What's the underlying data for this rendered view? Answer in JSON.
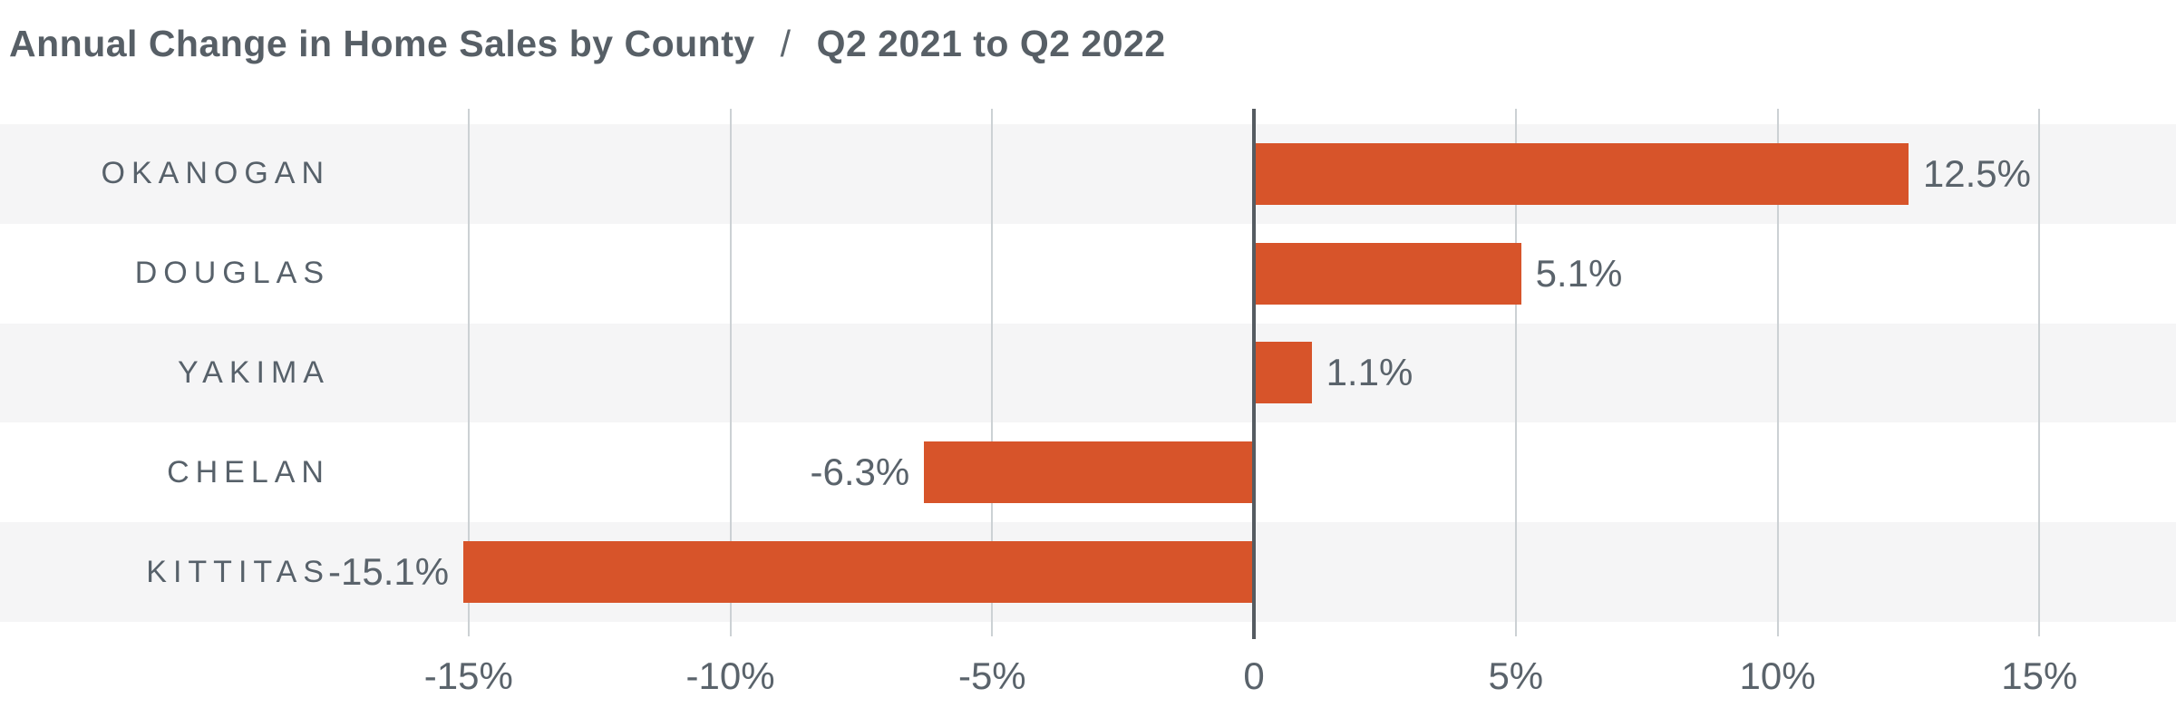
{
  "header": {
    "title": "Annual Change in Home Sales by County",
    "separator": "/",
    "subtitle": "Q2 2021 to Q2 2022"
  },
  "chart_data": {
    "type": "bar",
    "orientation": "horizontal",
    "title": "Annual Change in Home Sales by County",
    "subtitle": "Q2 2021 to Q2 2022",
    "categories": [
      "OKANOGAN",
      "DOUGLAS",
      "YAKIMA",
      "CHELAN",
      "KITTITAS"
    ],
    "values": [
      12.5,
      5.1,
      1.1,
      -6.3,
      -15.1
    ],
    "value_labels": [
      "12.5%",
      "5.1%",
      "1.1%",
      "-6.3%",
      "-15.1%"
    ],
    "unit": "percent",
    "xlabel": "",
    "ylabel": "",
    "xlim": [
      -23.95,
      17.61
    ],
    "x_ticks": [
      {
        "value": -15,
        "label": "-15%"
      },
      {
        "value": -10,
        "label": "-10%"
      },
      {
        "value": -5,
        "label": "-5%"
      },
      {
        "value": 0,
        "label": "0"
      },
      {
        "value": 5,
        "label": "5%"
      },
      {
        "value": 10,
        "label": "10%"
      },
      {
        "value": 15,
        "label": "15%"
      }
    ],
    "grid": "vertical",
    "legend": "none",
    "row_stripes": "odd rows shaded",
    "colors": {
      "bar": "#d7542a",
      "band": "#f5f5f6",
      "title_text": "#575f66",
      "category_text": "#57616a",
      "value_text": "#5a636b",
      "tick_text": "#5a636b",
      "zero_line": "#555b61",
      "gridline": "#ccd1d4",
      "background": "#ffffff"
    }
  }
}
